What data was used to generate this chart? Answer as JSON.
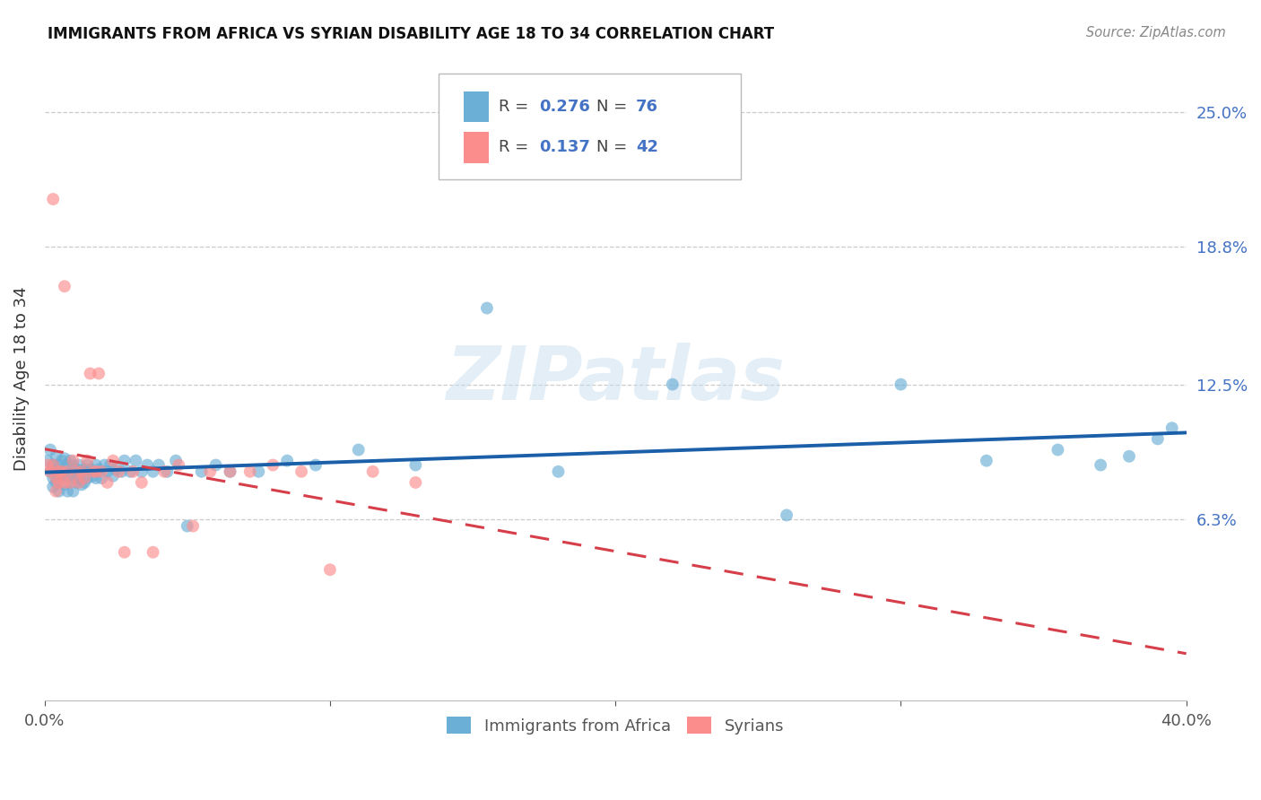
{
  "title": "IMMIGRANTS FROM AFRICA VS SYRIAN DISABILITY AGE 18 TO 34 CORRELATION CHART",
  "source": "Source: ZipAtlas.com",
  "ylabel": "Disability Age 18 to 34",
  "ytick_labels": [
    "6.3%",
    "12.5%",
    "18.8%",
    "25.0%"
  ],
  "ytick_values": [
    0.063,
    0.125,
    0.188,
    0.25
  ],
  "xlim": [
    0.0,
    0.4
  ],
  "ylim": [
    -0.02,
    0.275
  ],
  "legend_label1": "Immigrants from Africa",
  "legend_label2": "Syrians",
  "color_blue": "#6baed6",
  "color_pink": "#fc8d8d",
  "color_line_blue": "#1a5fa8",
  "color_line_pink": "#d63f4a",
  "africa_x": [
    0.001,
    0.002,
    0.002,
    0.003,
    0.003,
    0.003,
    0.004,
    0.004,
    0.004,
    0.005,
    0.005,
    0.005,
    0.006,
    0.006,
    0.007,
    0.007,
    0.007,
    0.008,
    0.008,
    0.008,
    0.009,
    0.009,
    0.01,
    0.01,
    0.01,
    0.011,
    0.011,
    0.012,
    0.012,
    0.013,
    0.013,
    0.014,
    0.014,
    0.015,
    0.015,
    0.016,
    0.017,
    0.018,
    0.018,
    0.019,
    0.02,
    0.021,
    0.022,
    0.023,
    0.024,
    0.025,
    0.027,
    0.028,
    0.03,
    0.032,
    0.034,
    0.036,
    0.038,
    0.04,
    0.043,
    0.046,
    0.05,
    0.055,
    0.06,
    0.065,
    0.075,
    0.085,
    0.095,
    0.11,
    0.13,
    0.155,
    0.18,
    0.22,
    0.26,
    0.3,
    0.33,
    0.355,
    0.37,
    0.38,
    0.39,
    0.395
  ],
  "africa_y": [
    0.09,
    0.085,
    0.095,
    0.088,
    0.082,
    0.078,
    0.092,
    0.086,
    0.08,
    0.088,
    0.083,
    0.076,
    0.09,
    0.084,
    0.091,
    0.085,
    0.079,
    0.088,
    0.083,
    0.076,
    0.09,
    0.084,
    0.088,
    0.082,
    0.076,
    0.086,
    0.08,
    0.088,
    0.082,
    0.085,
    0.079,
    0.086,
    0.08,
    0.088,
    0.082,
    0.086,
    0.083,
    0.088,
    0.082,
    0.086,
    0.082,
    0.088,
    0.085,
    0.088,
    0.083,
    0.086,
    0.085,
    0.09,
    0.085,
    0.09,
    0.085,
    0.088,
    0.085,
    0.088,
    0.085,
    0.09,
    0.06,
    0.085,
    0.088,
    0.085,
    0.085,
    0.09,
    0.088,
    0.095,
    0.088,
    0.16,
    0.085,
    0.125,
    0.065,
    0.125,
    0.09,
    0.095,
    0.088,
    0.092,
    0.1,
    0.105
  ],
  "syria_x": [
    0.001,
    0.002,
    0.003,
    0.003,
    0.004,
    0.004,
    0.005,
    0.005,
    0.006,
    0.007,
    0.007,
    0.008,
    0.009,
    0.01,
    0.011,
    0.012,
    0.013,
    0.014,
    0.015,
    0.016,
    0.017,
    0.018,
    0.019,
    0.02,
    0.022,
    0.024,
    0.026,
    0.028,
    0.031,
    0.034,
    0.038,
    0.042,
    0.047,
    0.052,
    0.058,
    0.065,
    0.072,
    0.08,
    0.09,
    0.1,
    0.115,
    0.13
  ],
  "syria_y": [
    0.088,
    0.085,
    0.21,
    0.088,
    0.082,
    0.076,
    0.085,
    0.08,
    0.085,
    0.08,
    0.17,
    0.085,
    0.08,
    0.09,
    0.085,
    0.08,
    0.085,
    0.082,
    0.09,
    0.13,
    0.085,
    0.085,
    0.13,
    0.085,
    0.08,
    0.09,
    0.085,
    0.048,
    0.085,
    0.08,
    0.048,
    0.085,
    0.088,
    0.06,
    0.085,
    0.085,
    0.085,
    0.088,
    0.085,
    0.04,
    0.085,
    0.08
  ]
}
